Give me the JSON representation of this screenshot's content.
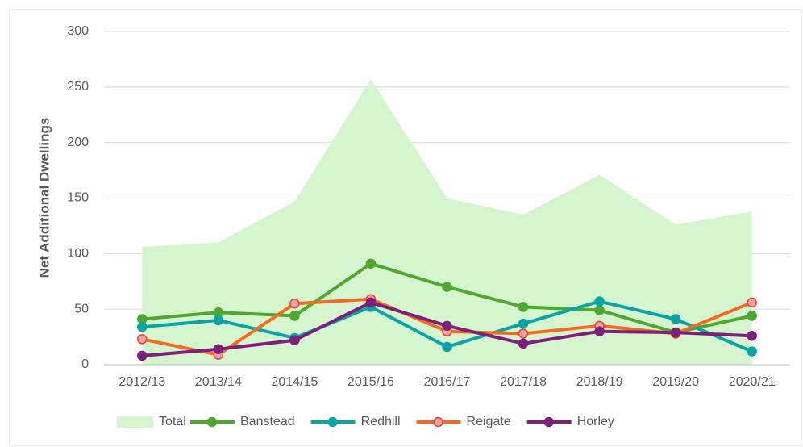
{
  "chart_data": {
    "type": "line",
    "y_label": "Net Additional Dwellings",
    "categories": [
      "2012/13",
      "2013/14",
      "2014/15",
      "2015/16",
      "2016/17",
      "2017/18",
      "2018/19",
      "2019/20",
      "2020/21"
    ],
    "series": [
      {
        "name": "Total",
        "type": "area",
        "color": "#d5f5cf",
        "values": [
          106,
          110,
          147,
          257,
          150,
          135,
          171,
          126,
          138
        ]
      },
      {
        "name": "Banstead",
        "type": "line",
        "color": "#4ea72e",
        "marker_fill": "#4ea72e",
        "values": [
          41,
          47,
          44,
          91,
          70,
          52,
          49,
          29,
          44
        ]
      },
      {
        "name": "Redhill",
        "type": "line",
        "color": "#0aa4a6",
        "marker_fill": "#0aa4a6",
        "values": [
          34,
          40,
          24,
          52,
          16,
          37,
          57,
          41,
          12
        ]
      },
      {
        "name": "Reigate",
        "type": "line",
        "color": "#f26b21",
        "marker_fill": "#f4a0a8",
        "marker_edge": "#e8402a",
        "values": [
          23,
          9,
          55,
          59,
          30,
          28,
          35,
          28,
          56
        ]
      },
      {
        "name": "Horley",
        "type": "line",
        "color": "#7e1f7a",
        "marker_fill": "#7e1f7a",
        "values": [
          8,
          14,
          22,
          56,
          35,
          19,
          30,
          29,
          26
        ]
      }
    ],
    "ylim": [
      0,
      300
    ],
    "yticks": [
      0,
      50,
      100,
      150,
      200,
      250,
      300
    ],
    "grid": true,
    "legend": "bottom"
  }
}
